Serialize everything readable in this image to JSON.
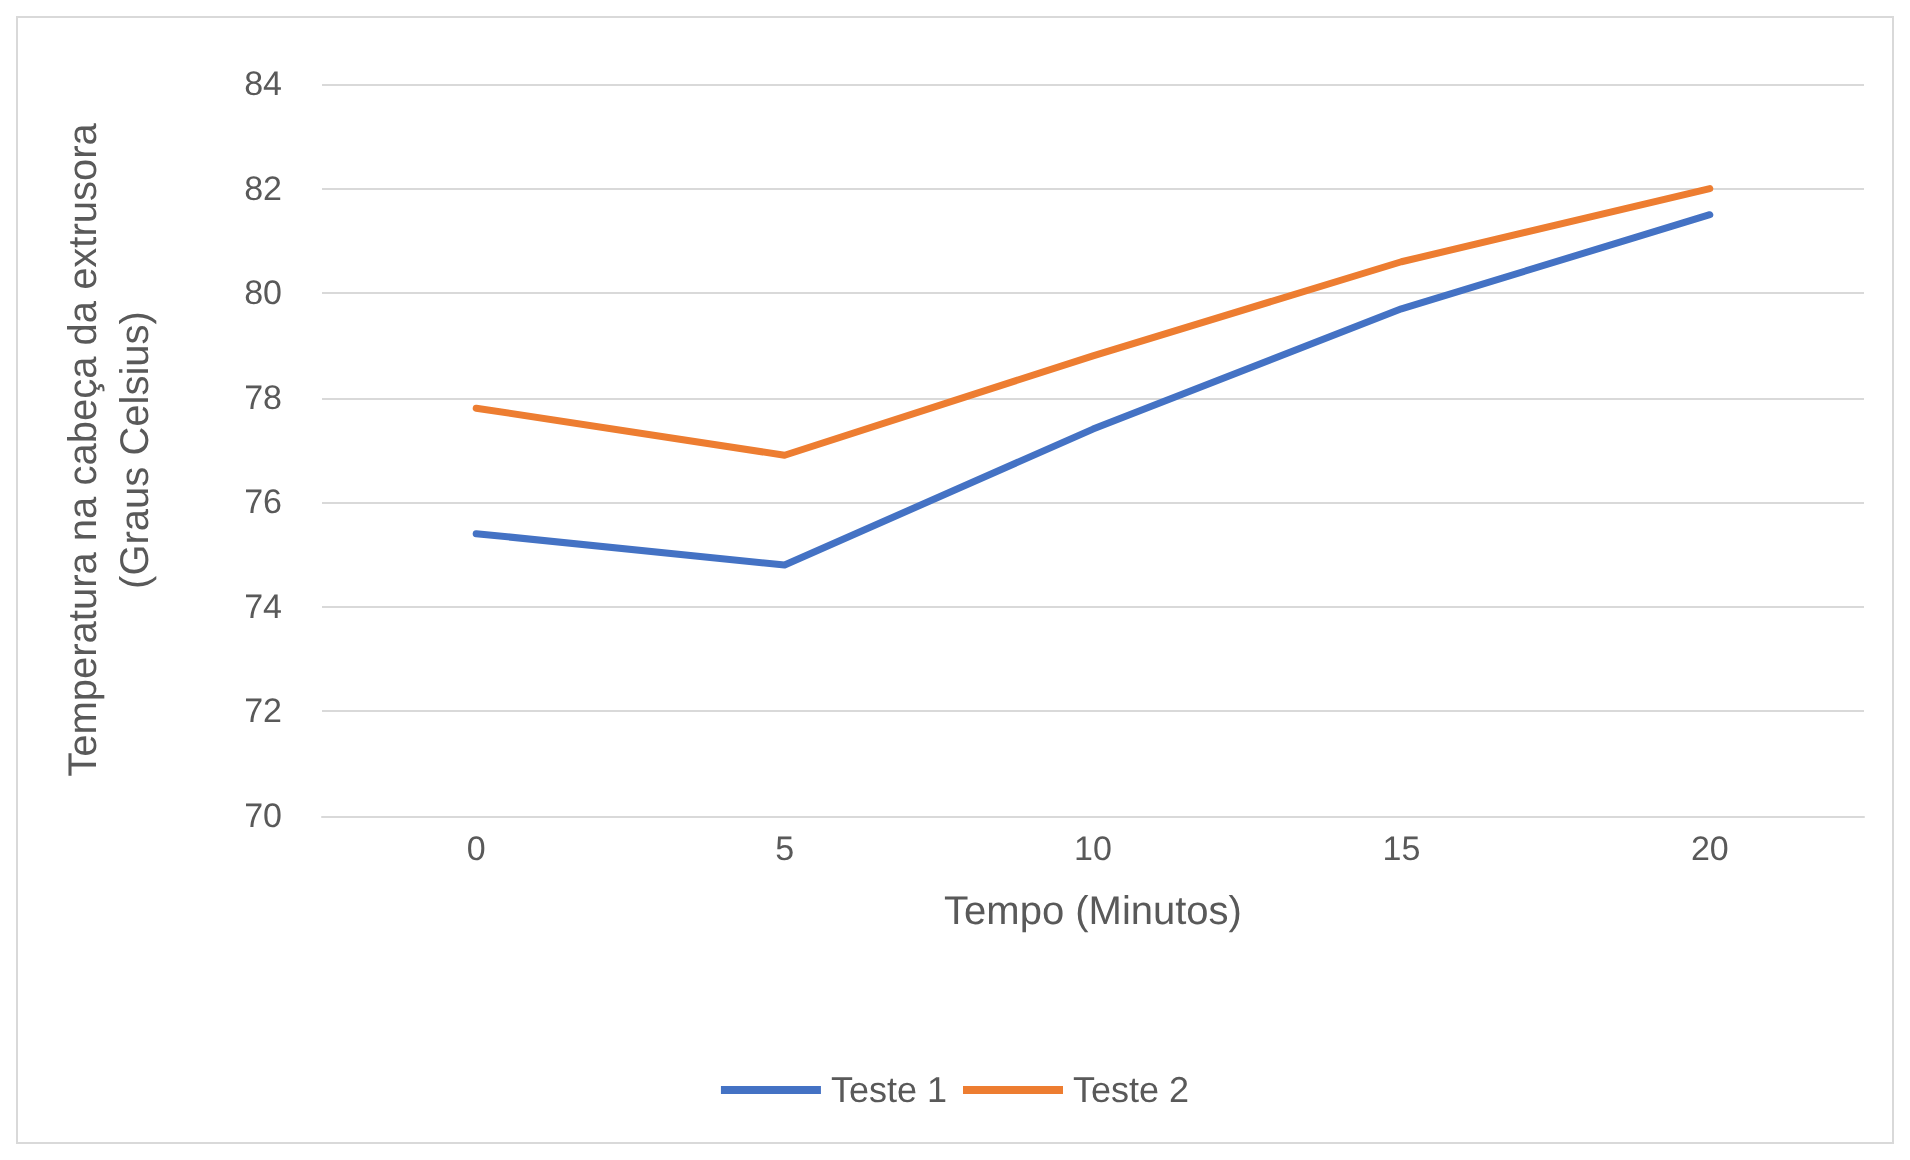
{
  "chart_data": {
    "type": "line",
    "xlabel": "Tempo (Minutos)",
    "ylabel": "Temperatura na cabeça da extrusora\n(Graus Celsius)",
    "categories": [
      "0",
      "5",
      "10",
      "15",
      "20"
    ],
    "series": [
      {
        "name": "Teste 1",
        "color": "#4472c4",
        "values": [
          75.4,
          74.8,
          77.4,
          79.7,
          81.5
        ]
      },
      {
        "name": "Teste 2",
        "color": "#ed7d31",
        "values": [
          77.8,
          76.9,
          78.8,
          80.6,
          82.0
        ]
      }
    ],
    "ylim": [
      70,
      84
    ],
    "yticks": [
      70,
      72,
      74,
      76,
      78,
      80,
      82,
      84
    ],
    "grid": "y",
    "legend": "bottom",
    "marker": "none",
    "line_style": "solid"
  }
}
